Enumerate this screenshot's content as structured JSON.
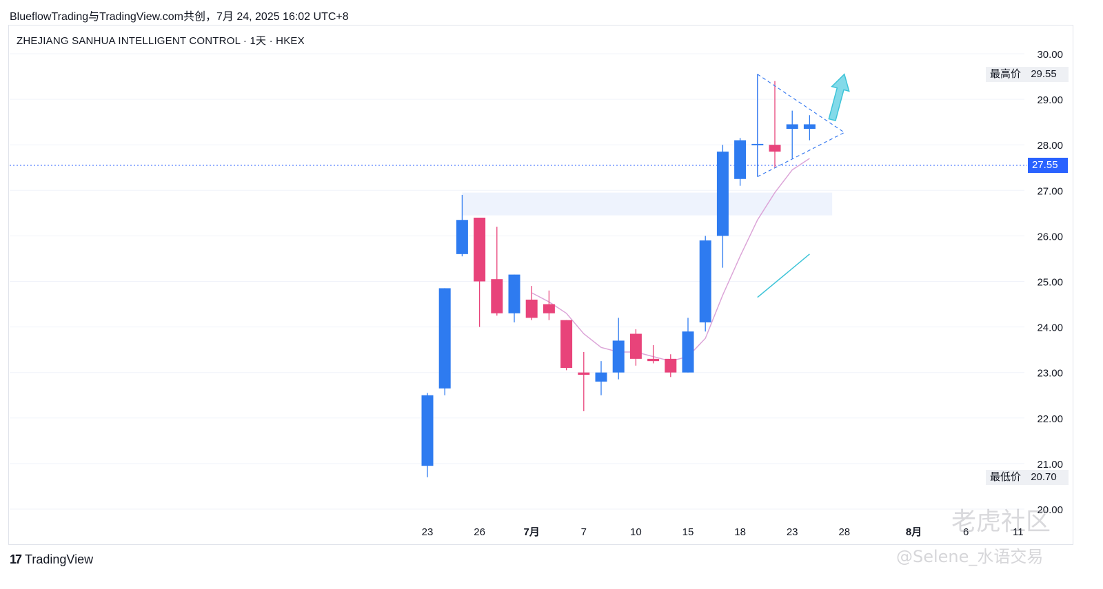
{
  "header": {
    "text": "BlueflowTrading与TradingView.com共创，7月 24, 2025 16:02 UTC+8"
  },
  "chart_title": "ZHEJIANG SANHUA INTELLIGENT CONTROL · 1天 · HKEX",
  "price_labels": {
    "high_label": "最高价",
    "high_value": "29.55",
    "low_label": "最低价",
    "low_value": "20.70",
    "current_value": "27.55"
  },
  "footer": {
    "logo_mark": "17",
    "logo_text": "TradingView"
  },
  "watermark": {
    "main": "老虎社区",
    "sub": "@Selene_水语交易"
  },
  "colors": {
    "up": "#2e7bf0",
    "down": "#e8437a",
    "ma": "#dca5d8",
    "grid": "#f0f3fa",
    "current_line": "#2962ff",
    "zone": "#eef3fd",
    "triangle": "#3b7cf0",
    "cyan": "#3ec4d8"
  },
  "chart_data": {
    "type": "candlestick",
    "y_ticks": [
      "20.00",
      "21.00",
      "22.00",
      "23.00",
      "24.00",
      "25.00",
      "26.00",
      "27.00",
      "28.00",
      "29.00",
      "30.00"
    ],
    "ylim": [
      19.7,
      30.5
    ],
    "x_ticks": [
      {
        "label": "23",
        "index": 0
      },
      {
        "label": "26",
        "index": 3
      },
      {
        "label": "7月",
        "index": 6,
        "bold": true
      },
      {
        "label": "7",
        "index": 9
      },
      {
        "label": "10",
        "index": 12
      },
      {
        "label": "15",
        "index": 15
      },
      {
        "label": "18",
        "index": 18
      },
      {
        "label": "23",
        "index": 21
      },
      {
        "label": "28",
        "index": 24
      },
      {
        "label": "8月",
        "index": 28,
        "bold": true
      },
      {
        "label": "6",
        "index": 31
      },
      {
        "label": "11",
        "index": 34
      }
    ],
    "candles": [
      {
        "o": 20.95,
        "h": 22.55,
        "l": 20.7,
        "c": 22.5
      },
      {
        "o": 22.65,
        "h": 24.85,
        "l": 22.5,
        "c": 24.85
      },
      {
        "o": 25.6,
        "h": 26.9,
        "l": 25.55,
        "c": 26.35
      },
      {
        "o": 26.4,
        "h": 26.4,
        "l": 24.0,
        "c": 25.0
      },
      {
        "o": 25.05,
        "h": 26.2,
        "l": 24.25,
        "c": 24.3
      },
      {
        "o": 24.3,
        "h": 25.15,
        "l": 24.1,
        "c": 25.15
      },
      {
        "o": 24.6,
        "h": 24.9,
        "l": 24.15,
        "c": 24.2
      },
      {
        "o": 24.5,
        "h": 24.8,
        "l": 24.15,
        "c": 24.3
      },
      {
        "o": 24.15,
        "h": 24.15,
        "l": 23.05,
        "c": 23.1
      },
      {
        "o": 23.0,
        "h": 23.45,
        "l": 22.15,
        "c": 22.95
      },
      {
        "o": 22.8,
        "h": 23.25,
        "l": 22.5,
        "c": 23.0
      },
      {
        "o": 23.0,
        "h": 24.2,
        "l": 22.85,
        "c": 23.7
      },
      {
        "o": 23.85,
        "h": 23.95,
        "l": 23.15,
        "c": 23.3
      },
      {
        "o": 23.3,
        "h": 23.6,
        "l": 23.2,
        "c": 23.25
      },
      {
        "o": 23.3,
        "h": 23.4,
        "l": 22.9,
        "c": 23.0
      },
      {
        "o": 23.0,
        "h": 24.2,
        "l": 23.0,
        "c": 23.9
      },
      {
        "o": 24.1,
        "h": 26.0,
        "l": 23.9,
        "c": 25.9
      },
      {
        "o": 26.0,
        "h": 28.0,
        "l": 25.3,
        "c": 27.85
      },
      {
        "o": 27.25,
        "h": 28.15,
        "l": 27.1,
        "c": 28.1
      },
      {
        "o": 28.0,
        "h": 29.55,
        "l": 27.3,
        "c": 28.02
      },
      {
        "o": 28.0,
        "h": 29.4,
        "l": 27.5,
        "c": 27.85
      },
      {
        "o": 28.35,
        "h": 28.75,
        "l": 27.7,
        "c": 28.45
      },
      {
        "o": 28.35,
        "h": 28.65,
        "l": 28.1,
        "c": 28.45
      }
    ],
    "ma": [
      null,
      null,
      null,
      null,
      null,
      null,
      24.75,
      24.55,
      24.3,
      23.85,
      23.55,
      23.45,
      23.45,
      23.35,
      23.25,
      23.35,
      23.75,
      24.7,
      25.55,
      26.35,
      26.95,
      27.45,
      27.7
    ],
    "resistance_zone": {
      "from_index": 2,
      "to_index": 23.3,
      "low": 26.45,
      "high": 26.95
    },
    "triangle": {
      "start_index": 19,
      "top_start": 29.55,
      "bottom_start": 27.3,
      "apex_index": 24,
      "apex_price": 28.27
    },
    "trend_line": {
      "from_index": 19,
      "from_price": 24.65,
      "to_index": 22,
      "to_price": 25.6
    },
    "arrow": {
      "from_index": 23.3,
      "from_price": 28.55,
      "to_index": 24,
      "to_price": 29.55
    },
    "current_price": 27.55
  }
}
